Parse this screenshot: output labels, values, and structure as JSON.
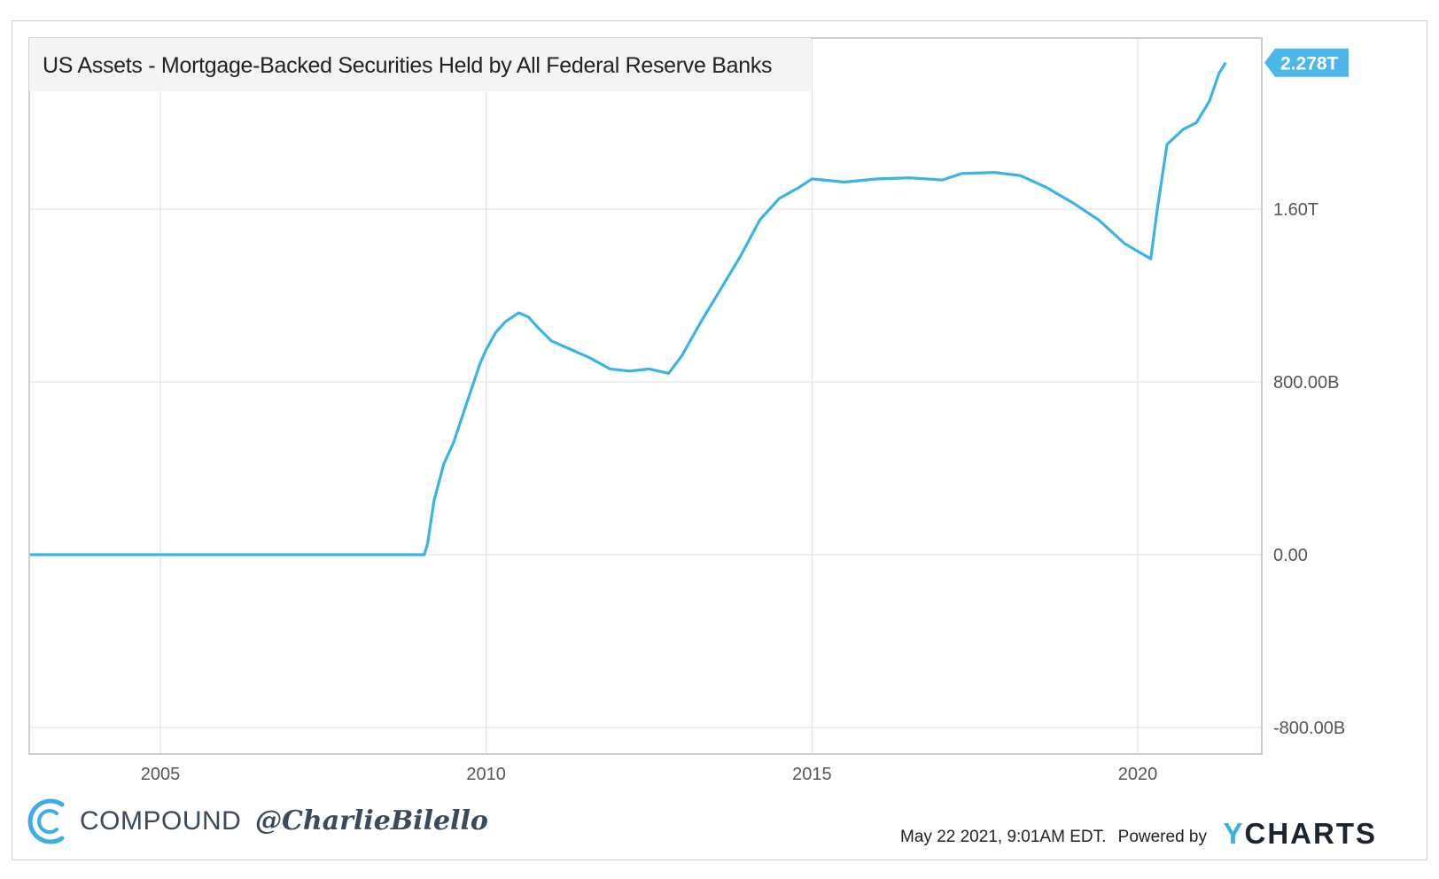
{
  "chart_data": {
    "type": "line",
    "title": "US Assets - Mortgage-Backed Securities Held by All Federal Reserve Banks",
    "x_ticks": [
      "2005",
      "2010",
      "2015",
      "2020"
    ],
    "y_ticks": [
      "-800.00B",
      "0.00",
      "800.00B",
      "1.60T"
    ],
    "y_tick_values": [
      -800,
      0,
      800,
      1600
    ],
    "ylim": [
      -800,
      2450
    ],
    "xlim": [
      2003.0,
      2021.4
    ],
    "last_value_label": "2.278T",
    "grid": true,
    "series": [
      {
        "color": "#3ab3e5",
        "units": "billions USD",
        "points": [
          [
            2003.0,
            0
          ],
          [
            2008.0,
            0
          ],
          [
            2009.05,
            0
          ],
          [
            2009.1,
            50
          ],
          [
            2009.2,
            250
          ],
          [
            2009.35,
            420
          ],
          [
            2009.5,
            520
          ],
          [
            2009.7,
            700
          ],
          [
            2009.9,
            880
          ],
          [
            2010.0,
            950
          ],
          [
            2010.15,
            1030
          ],
          [
            2010.3,
            1080
          ],
          [
            2010.5,
            1120
          ],
          [
            2010.65,
            1100
          ],
          [
            2010.8,
            1050
          ],
          [
            2011.0,
            990
          ],
          [
            2011.3,
            950
          ],
          [
            2011.6,
            910
          ],
          [
            2011.9,
            860
          ],
          [
            2012.2,
            850
          ],
          [
            2012.5,
            860
          ],
          [
            2012.8,
            840
          ],
          [
            2013.0,
            920
          ],
          [
            2013.3,
            1080
          ],
          [
            2013.6,
            1230
          ],
          [
            2013.9,
            1380
          ],
          [
            2014.2,
            1550
          ],
          [
            2014.5,
            1650
          ],
          [
            2014.8,
            1700
          ],
          [
            2015.0,
            1740
          ],
          [
            2015.5,
            1725
          ],
          [
            2016.0,
            1740
          ],
          [
            2016.5,
            1745
          ],
          [
            2017.0,
            1735
          ],
          [
            2017.3,
            1765
          ],
          [
            2017.8,
            1770
          ],
          [
            2018.2,
            1755
          ],
          [
            2018.6,
            1700
          ],
          [
            2019.0,
            1630
          ],
          [
            2019.4,
            1550
          ],
          [
            2019.8,
            1440
          ],
          [
            2020.2,
            1370
          ],
          [
            2020.3,
            1600
          ],
          [
            2020.45,
            1900
          ],
          [
            2020.7,
            1970
          ],
          [
            2020.9,
            2000
          ],
          [
            2021.1,
            2100
          ],
          [
            2021.25,
            2230
          ],
          [
            2021.35,
            2278
          ]
        ]
      }
    ]
  },
  "footer": {
    "brand": "COMPOUND",
    "handle": "@CharlieBilello",
    "timestamp": "May 22 2021, 9:01AM EDT.",
    "powered_by": "Powered by",
    "provider_y": "Y",
    "provider_rest": "CHARTS"
  }
}
